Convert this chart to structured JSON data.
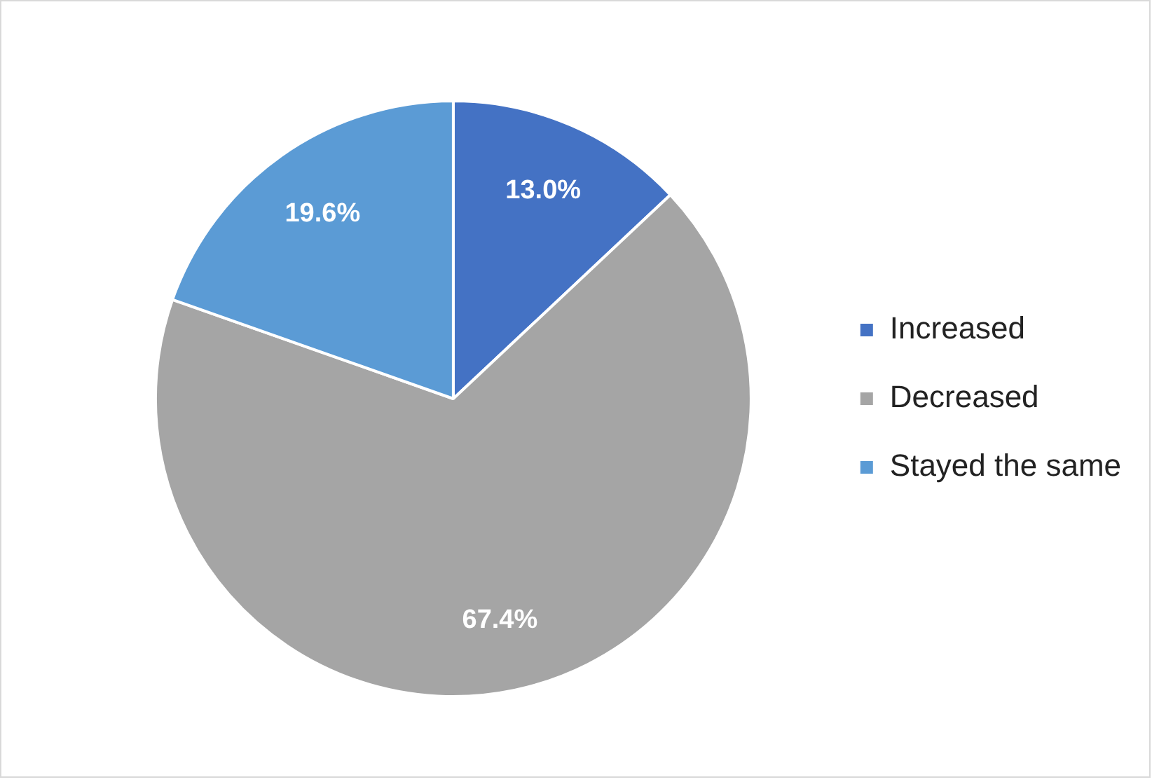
{
  "chart_data": {
    "type": "pie",
    "categories": [
      "Increased",
      "Decreased",
      "Stayed the same"
    ],
    "values": [
      13.0,
      67.4,
      19.6
    ],
    "colors": [
      "#4472c4",
      "#a5a5a5",
      "#5b9bd5"
    ],
    "value_labels": [
      "13.0%",
      "67.4%",
      "19.6%"
    ],
    "legend": "right"
  }
}
